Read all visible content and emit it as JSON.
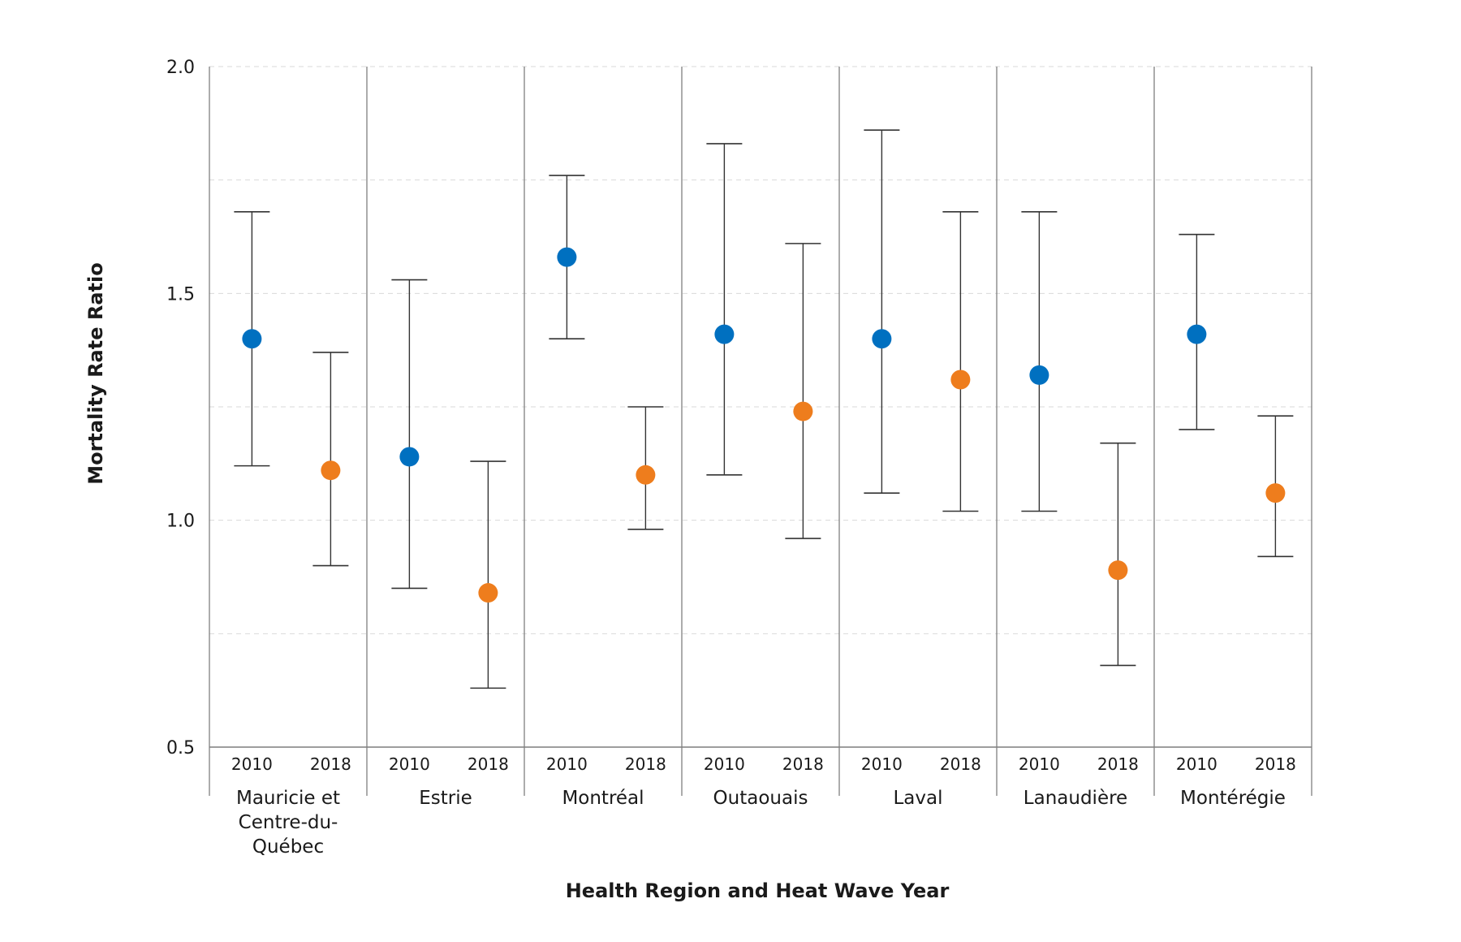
{
  "chart_data": {
    "type": "scatter",
    "subtype": "dot-plot with confidence intervals",
    "title": "",
    "xlabel": "Health Region and Heat Wave Year",
    "ylabel": "Mortality Rate Ratio",
    "ylim": [
      0.5,
      2.0
    ],
    "yticks": [
      "0.5",
      "1.0",
      "1.5",
      "2.0"
    ],
    "grid": true,
    "legend": "none",
    "colors": {
      "2010": "#0070c0",
      "2018": "#ee7d1d"
    },
    "groups": [
      {
        "region": "Mauricie et Centre-du-Québec",
        "region_lines": [
          "Mauricie et",
          "Centre-du-",
          "Québec"
        ],
        "points": [
          {
            "year": "2010",
            "value": 1.4,
            "lower": 1.12,
            "upper": 1.68
          },
          {
            "year": "2018",
            "value": 1.11,
            "lower": 0.9,
            "upper": 1.37
          }
        ]
      },
      {
        "region": "Estrie",
        "region_lines": [
          "Estrie"
        ],
        "points": [
          {
            "year": "2010",
            "value": 1.14,
            "lower": 0.85,
            "upper": 1.53
          },
          {
            "year": "2018",
            "value": 0.84,
            "lower": 0.63,
            "upper": 1.13
          }
        ]
      },
      {
        "region": "Montréal",
        "region_lines": [
          "Montréal"
        ],
        "points": [
          {
            "year": "2010",
            "value": 1.58,
            "lower": 1.4,
            "upper": 1.76
          },
          {
            "year": "2018",
            "value": 1.1,
            "lower": 0.98,
            "upper": 1.25
          }
        ]
      },
      {
        "region": "Outaouais",
        "region_lines": [
          "Outaouais"
        ],
        "points": [
          {
            "year": "2010",
            "value": 1.41,
            "lower": 1.1,
            "upper": 1.83
          },
          {
            "year": "2018",
            "value": 1.24,
            "lower": 0.96,
            "upper": 1.61
          }
        ]
      },
      {
        "region": "Laval",
        "region_lines": [
          "Laval"
        ],
        "points": [
          {
            "year": "2010",
            "value": 1.4,
            "lower": 1.06,
            "upper": 1.86
          },
          {
            "year": "2018",
            "value": 1.31,
            "lower": 1.02,
            "upper": 1.68
          }
        ]
      },
      {
        "region": "Lanaudière",
        "region_lines": [
          "Lanaudière"
        ],
        "points": [
          {
            "year": "2010",
            "value": 1.32,
            "lower": 1.02,
            "upper": 1.68
          },
          {
            "year": "2018",
            "value": 0.89,
            "lower": 0.68,
            "upper": 1.17
          }
        ]
      },
      {
        "region": "Montérégie",
        "region_lines": [
          "Montérégie"
        ],
        "points": [
          {
            "year": "2010",
            "value": 1.41,
            "lower": 1.2,
            "upper": 1.63
          },
          {
            "year": "2018",
            "value": 1.06,
            "lower": 0.92,
            "upper": 1.23
          }
        ]
      }
    ]
  }
}
